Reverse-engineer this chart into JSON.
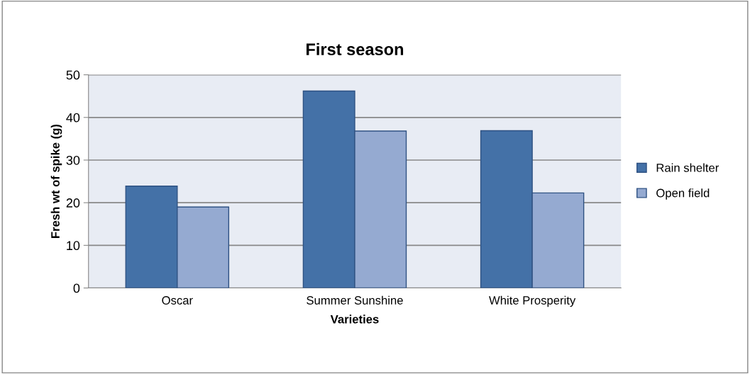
{
  "chart_data": {
    "type": "bar",
    "title": "First season",
    "xlabel": "Varieties",
    "ylabel": "Fresh wt of spike (g)",
    "categories": [
      "Oscar",
      "Summer Sunshine",
      "White Prosperity"
    ],
    "series": [
      {
        "name": "Rain shelter",
        "color": "#4471a7",
        "values": [
          23.9,
          46.2,
          36.9
        ]
      },
      {
        "name": "Open field",
        "color": "#95aad1",
        "values": [
          19.0,
          36.8,
          22.3
        ]
      }
    ],
    "ylim": [
      0,
      50
    ],
    "yticks": [
      0,
      10,
      20,
      30,
      40,
      50
    ],
    "grid": "y",
    "legend": "right"
  }
}
